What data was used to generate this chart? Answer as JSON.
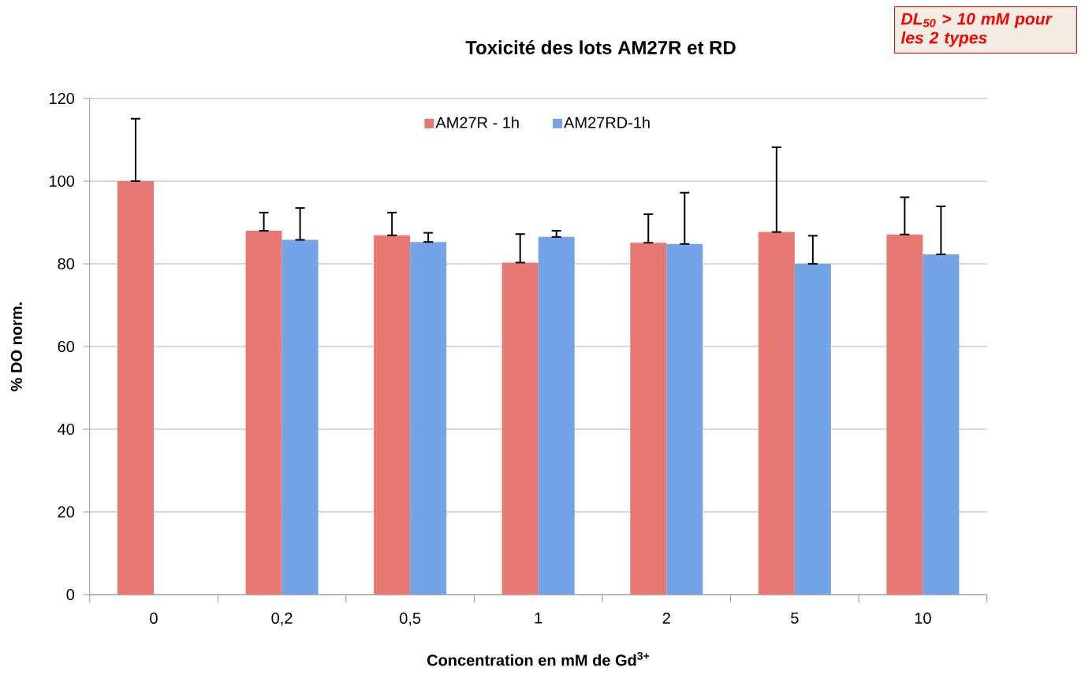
{
  "chart_data": {
    "type": "bar",
    "title": "Toxicité des lots AM27R et RD",
    "xlabel": "Concentration en mM de Gd$^{3+}$",
    "ylabel": "% DO norm.",
    "categories": [
      "0",
      "0,2",
      "0,5",
      "1",
      "2",
      "5",
      "10"
    ],
    "series": [
      {
        "name": "AM27R - 1h",
        "color": "#e87874",
        "values": [
          100,
          88,
          86.9,
          80.3,
          85.1,
          87.7,
          87.1
        ],
        "errors": [
          [
            100,
            115.1
          ],
          [
            88,
            92.4
          ],
          [
            86.9,
            92.4
          ],
          [
            80.3,
            87.2
          ],
          [
            85.1,
            92.0
          ],
          [
            87.7,
            108.2
          ],
          [
            87.1,
            96.1
          ]
        ]
      },
      {
        "name": "AM27RD-1h",
        "color": "#75a3e8",
        "values": [
          null,
          85.8,
          85.3,
          86.5,
          84.8,
          80.0,
          82.3
        ],
        "errors": [
          null,
          [
            85.8,
            93.5
          ],
          [
            85.3,
            87.5
          ],
          [
            86.5,
            88.0
          ],
          [
            84.8,
            97.2
          ],
          [
            80.0,
            86.8
          ],
          [
            82.3,
            93.9
          ]
        ]
      }
    ],
    "ylim": [
      0,
      120
    ],
    "yticks": [
      0,
      20,
      40,
      60,
      80,
      100,
      120
    ],
    "grid": "y",
    "legend": "top",
    "annotations": [
      "DL$_{50}$ > 10 mM pour les 2 types"
    ]
  }
}
